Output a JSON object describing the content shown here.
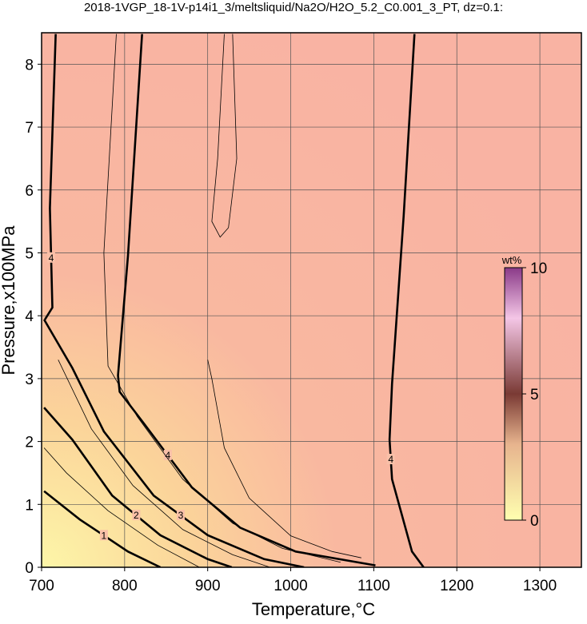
{
  "chart_data": {
    "type": "contour",
    "title": "2018-1VGP_18-1V-p14i1_3/meltsliquid/Na2O/H2O_5.2_C0.001_3_PT, dz=0.1:",
    "x_label": "Temperature,°C",
    "y_label": "Pressure,x100MPa",
    "xlim": [
      700,
      1350
    ],
    "ylim": [
      0,
      8.5
    ],
    "xticks": [
      700,
      800,
      900,
      1000,
      1100,
      1200,
      1300
    ],
    "yticks": [
      0,
      1,
      2,
      3,
      4,
      5,
      6,
      7,
      8
    ],
    "grid": true,
    "colorbar": {
      "label": "wt%",
      "clim": [
        0,
        10
      ],
      "ticks": [
        0,
        5,
        10
      ]
    },
    "contours": [
      {
        "level": 4,
        "x": [
          1160,
          1146,
          1122,
          1119,
          1122,
          1136,
          1149
        ],
        "y": [
          0,
          0.25,
          1.4,
          2.03,
          2.92,
          5.59,
          8.48
        ]
      },
      {
        "level": 4,
        "x": [
          1102,
          1006,
          939,
          881,
          823,
          794,
          792,
          804,
          821
        ],
        "y": [
          0.03,
          0.25,
          0.63,
          1.27,
          2.29,
          2.79,
          3.05,
          4.95,
          8.48
        ]
      },
      {
        "level": 3,
        "x": [
          1016,
          968,
          900,
          835,
          775,
          737,
          703
        ],
        "y": [
          0,
          0.13,
          0.51,
          1.14,
          2.16,
          3.17,
          3.94
        ]
      },
      {
        "level": 2,
        "x": [
          929,
          900,
          843,
          785,
          737,
          703
        ],
        "y": [
          0,
          0.13,
          0.51,
          1.14,
          2.03,
          2.54
        ]
      },
      {
        "level": 1,
        "x": [
          843,
          804,
          746,
          703
        ],
        "y": [
          0,
          0.25,
          0.76,
          1.21
        ]
      },
      {
        "level": 4,
        "x": [
          704,
          713,
          710,
          717
        ],
        "y": [
          3.94,
          4.13,
          5.71,
          8.48
        ]
      },
      {
        "level": 4.2,
        "x": [
          920,
          912,
          905,
          915,
          925,
          935,
          930
        ],
        "y": [
          8.48,
          6.5,
          5.5,
          5.25,
          5.4,
          6.5,
          8.48
        ]
      },
      {
        "level": 3.8,
        "x": [
          1085,
          1050,
          1000,
          950,
          920,
          905,
          900
        ],
        "y": [
          0.15,
          0.25,
          0.5,
          1.1,
          1.9,
          3.0,
          3.3
        ]
      },
      {
        "level": 3.5,
        "x": [
          1060,
          990,
          930,
          870,
          815,
          780,
          775,
          790
        ],
        "y": [
          0.08,
          0.3,
          0.7,
          1.4,
          2.4,
          3.2,
          5.0,
          8.48
        ]
      },
      {
        "level": 2.5,
        "x": [
          975,
          930,
          870,
          810,
          760,
          720
        ],
        "y": [
          0,
          0.2,
          0.6,
          1.3,
          2.2,
          3.3
        ]
      },
      {
        "level": 1.5,
        "x": [
          890,
          840,
          780,
          730,
          703
        ],
        "y": [
          0,
          0.35,
          0.9,
          1.5,
          1.9
        ]
      }
    ]
  }
}
